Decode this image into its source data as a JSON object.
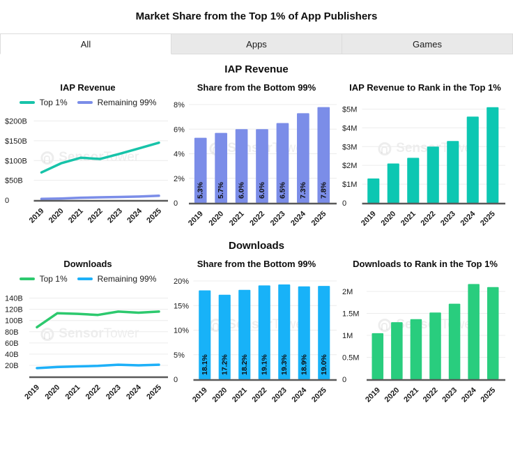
{
  "page": {
    "title": "Market Share from the Top 1% of App Publishers"
  },
  "tabs": [
    {
      "label": "All",
      "active": true
    },
    {
      "label": "Apps",
      "active": false
    },
    {
      "label": "Games",
      "active": false
    }
  ],
  "watermark": {
    "brand_bold": "Sensor",
    "brand_light": "Tower"
  },
  "sections": [
    {
      "header": "IAP Revenue"
    },
    {
      "header": "Downloads"
    }
  ],
  "colors": {
    "iap_top1_teal": "#17c3a9",
    "iap_remaining_purple": "#7b8de8",
    "iap_rank_teal": "#0cc7b2",
    "downloads_top1_green": "#2dc96e",
    "downloads_remaining_blue": "#1db0f8",
    "downloads_share_cyan": "#18b2f8",
    "downloads_rank_green": "#29cd7e",
    "tab_inactive_bg": "#e9e9e9",
    "gridline": "#ececec",
    "axis": "#595959"
  },
  "chart_data": [
    {
      "type": "line",
      "section": "IAP Revenue",
      "title": "IAP Revenue",
      "categories": [
        "2019",
        "2020",
        "2021",
        "2022",
        "2023",
        "2024",
        "2025"
      ],
      "series": [
        {
          "name": "Top 1%",
          "color": "#17c3a9",
          "values": [
            70,
            93,
            107,
            104,
            117,
            131,
            145
          ]
        },
        {
          "name": "Remaining 99%",
          "color": "#7b8de8",
          "values": [
            3,
            4,
            6,
            7,
            8,
            9,
            11
          ]
        }
      ],
      "y_ticks": [
        {
          "value": 0,
          "label": "0"
        },
        {
          "value": 50,
          "label": "$50B"
        },
        {
          "value": 100,
          "label": "$100B"
        },
        {
          "value": 150,
          "label": "$150B"
        },
        {
          "value": 200,
          "label": "$200B"
        }
      ],
      "ylim": [
        0,
        215
      ],
      "unit": "USD billions",
      "grid": true,
      "legend_position": "top"
    },
    {
      "type": "bar",
      "section": "IAP Revenue",
      "title": "Share from the Bottom 99%",
      "categories": [
        "2019",
        "2020",
        "2021",
        "2022",
        "2023",
        "2024",
        "2025"
      ],
      "values": [
        5.3,
        5.7,
        6.0,
        6.0,
        6.5,
        7.3,
        7.8
      ],
      "bar_labels": [
        "5.3%",
        "5.7%",
        "6.0%",
        "6.0%",
        "6.5%",
        "7.3%",
        "7.8%"
      ],
      "color": "#7b8de8",
      "y_ticks": [
        {
          "value": 0,
          "label": "0"
        },
        {
          "value": 2,
          "label": "2%"
        },
        {
          "value": 4,
          "label": "4%"
        },
        {
          "value": 6,
          "label": "6%"
        },
        {
          "value": 8,
          "label": "8%"
        }
      ],
      "ylim": [
        0,
        8.4
      ],
      "unit": "percent",
      "grid": true
    },
    {
      "type": "bar",
      "section": "IAP Revenue",
      "title": "IAP Revenue to Rank in the Top 1%",
      "categories": [
        "2019",
        "2020",
        "2021",
        "2022",
        "2023",
        "2024",
        "2025"
      ],
      "values": [
        1.3,
        2.1,
        2.4,
        3.0,
        3.3,
        4.6,
        5.1
      ],
      "bar_labels": [],
      "color": "#0cc7b2",
      "y_ticks": [
        {
          "value": 0,
          "label": "0"
        },
        {
          "value": 1,
          "label": "$1M"
        },
        {
          "value": 2,
          "label": "$2M"
        },
        {
          "value": 3,
          "label": "$3M"
        },
        {
          "value": 4,
          "label": "$4M"
        },
        {
          "value": 5,
          "label": "$5M"
        }
      ],
      "ylim": [
        0,
        5.5
      ],
      "unit": "USD millions",
      "grid": true
    },
    {
      "type": "line",
      "section": "Downloads",
      "title": "Downloads",
      "categories": [
        "2019",
        "2020",
        "2021",
        "2022",
        "2023",
        "2024",
        "2025"
      ],
      "series": [
        {
          "name": "Top 1%",
          "color": "#2dc96e",
          "values": [
            88,
            113,
            112,
            110,
            116,
            114,
            116
          ]
        },
        {
          "name": "Remaining 99%",
          "color": "#1db0f8",
          "values": [
            15,
            17,
            18,
            19,
            21,
            20,
            21
          ]
        }
      ],
      "y_ticks": [
        {
          "value": 20,
          "label": "20B"
        },
        {
          "value": 40,
          "label": "40B"
        },
        {
          "value": 60,
          "label": "60B"
        },
        {
          "value": 80,
          "label": "80B"
        },
        {
          "value": 100,
          "label": "100B"
        },
        {
          "value": 120,
          "label": "120B"
        },
        {
          "value": 140,
          "label": "140B"
        }
      ],
      "ylim": [
        0,
        152
      ],
      "unit": "downloads billions",
      "grid": true,
      "legend_position": "top"
    },
    {
      "type": "bar",
      "section": "Downloads",
      "title": "Share from the Bottom 99%",
      "categories": [
        "2019",
        "2020",
        "2021",
        "2022",
        "2023",
        "2024",
        "2025"
      ],
      "values": [
        18.1,
        17.2,
        18.2,
        19.1,
        19.3,
        18.9,
        19.0
      ],
      "bar_labels": [
        "18.1%",
        "17.2%",
        "18.2%",
        "19.1%",
        "19.3%",
        "18.9%",
        "19.0%"
      ],
      "color": "#18b2f8",
      "y_ticks": [
        {
          "value": 0,
          "label": "0"
        },
        {
          "value": 5,
          "label": "5%"
        },
        {
          "value": 10,
          "label": "10%"
        },
        {
          "value": 15,
          "label": "15%"
        },
        {
          "value": 20,
          "label": "20%"
        }
      ],
      "ylim": [
        0,
        21
      ],
      "unit": "percent",
      "grid": true
    },
    {
      "type": "bar",
      "section": "Downloads",
      "title": "Downloads to Rank in the Top 1%",
      "categories": [
        "2019",
        "2020",
        "2021",
        "2022",
        "2023",
        "2024",
        "2025"
      ],
      "values": [
        1.05,
        1.3,
        1.37,
        1.52,
        1.72,
        2.17,
        2.1
      ],
      "bar_labels": [],
      "color": "#29cd7e",
      "y_ticks": [
        {
          "value": 0,
          "label": "0"
        },
        {
          "value": 0.5,
          "label": "0.5M"
        },
        {
          "value": 1,
          "label": "1M"
        },
        {
          "value": 1.5,
          "label": "1.5M"
        },
        {
          "value": 2,
          "label": "2M"
        }
      ],
      "ylim": [
        0,
        2.35
      ],
      "unit": "downloads millions",
      "grid": true
    }
  ]
}
